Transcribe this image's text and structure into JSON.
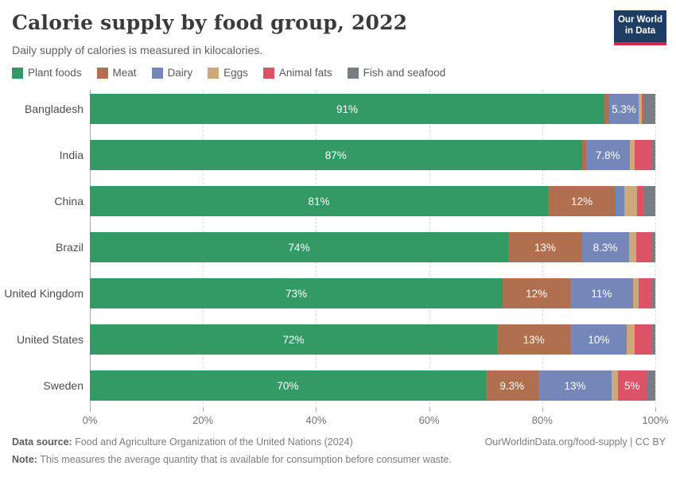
{
  "header": {
    "title": "Calorie supply by food group, 2022",
    "logo_line1": "Our World",
    "logo_line2": "in Data",
    "logo_bg": "#1d3d63",
    "logo_underline": "#d7263d"
  },
  "subtitle": "Daily supply of calories is measured in kilocalories.",
  "chart_data": {
    "type": "bar",
    "stacked": true,
    "orientation": "horizontal",
    "unit": "%",
    "xlim": [
      0,
      100
    ],
    "x_ticks": [
      "0%",
      "20%",
      "40%",
      "60%",
      "80%",
      "100%"
    ],
    "x_tick_values": [
      0,
      20,
      40,
      60,
      80,
      100
    ],
    "grid": "dashed-vertical",
    "legend_position": "top",
    "categories": [
      "Bangladesh",
      "India",
      "China",
      "Brazil",
      "United Kingdom",
      "United States",
      "Sweden"
    ],
    "series": [
      {
        "name": "Plant foods",
        "color": "#339a66",
        "values": [
          91,
          87,
          81,
          74,
          73,
          72,
          70
        ],
        "labels": [
          "91%",
          "87%",
          "81%",
          "74%",
          "73%",
          "72%",
          "70%"
        ]
      },
      {
        "name": "Meat",
        "color": "#b0704f",
        "values": [
          0.8,
          0.7,
          12,
          13,
          12,
          13,
          9.3
        ],
        "labels": [
          null,
          null,
          "12%",
          "13%",
          "12%",
          "13%",
          "9.3%"
        ]
      },
      {
        "name": "Dairy",
        "color": "#7487b8",
        "values": [
          5.3,
          7.8,
          1.5,
          8.3,
          11,
          10,
          13
        ],
        "labels": [
          "5.3%",
          "7.8%",
          null,
          "8.3%",
          "11%",
          "10%",
          "13%"
        ]
      },
      {
        "name": "Eggs",
        "color": "#cda87d",
        "values": [
          0.5,
          0.8,
          2.3,
          1.3,
          1.0,
          1.4,
          1.1
        ],
        "labels": [
          null,
          null,
          null,
          null,
          null,
          null,
          null
        ]
      },
      {
        "name": "Animal fats",
        "color": "#dc5266",
        "values": [
          0.4,
          3.0,
          1.2,
          2.9,
          2.4,
          2.9,
          5
        ],
        "labels": [
          null,
          null,
          null,
          null,
          null,
          null,
          "5%"
        ]
      },
      {
        "name": "Fish and seafood",
        "color": "#797d84",
        "values": [
          2.0,
          0.7,
          2.0,
          0.5,
          0.6,
          0.7,
          1.6
        ],
        "labels": [
          null,
          null,
          null,
          null,
          null,
          null,
          null
        ]
      }
    ]
  },
  "footer": {
    "data_source_label": "Data source:",
    "data_source_text": " Food and Agriculture Organization of the United Nations (2024)",
    "link": "OurWorldinData.org/food-supply | CC BY",
    "note_label": "Note:",
    "note_text": " This measures the average quantity that is available for consumption before consumer waste."
  }
}
